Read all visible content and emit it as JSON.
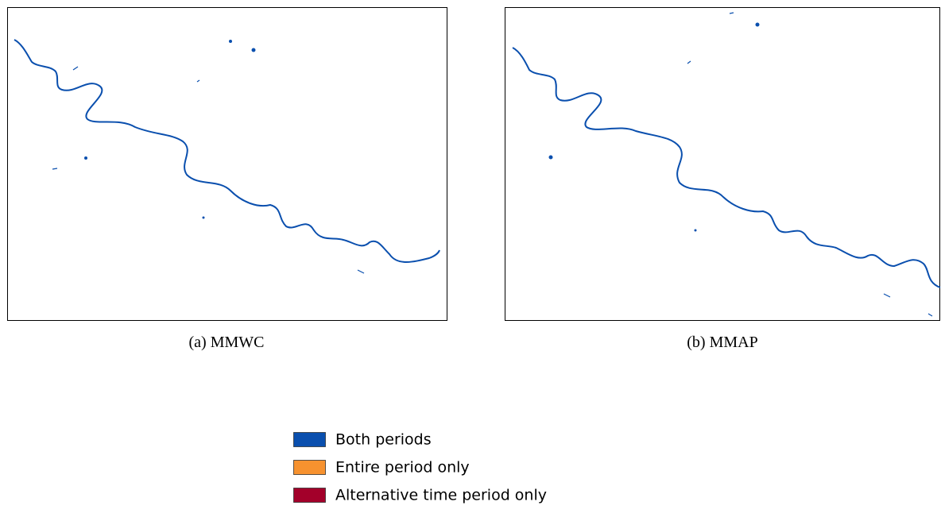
{
  "panels": [
    {
      "caption": "(a) MMWC"
    },
    {
      "caption": "(b) MMAP"
    }
  ],
  "legend": [
    {
      "label": "Both periods",
      "color": "#0a4fae"
    },
    {
      "label": "Entire period only",
      "color": "#f7922f"
    },
    {
      "label": "Alternative time period only",
      "color": "#a3002a"
    }
  ]
}
